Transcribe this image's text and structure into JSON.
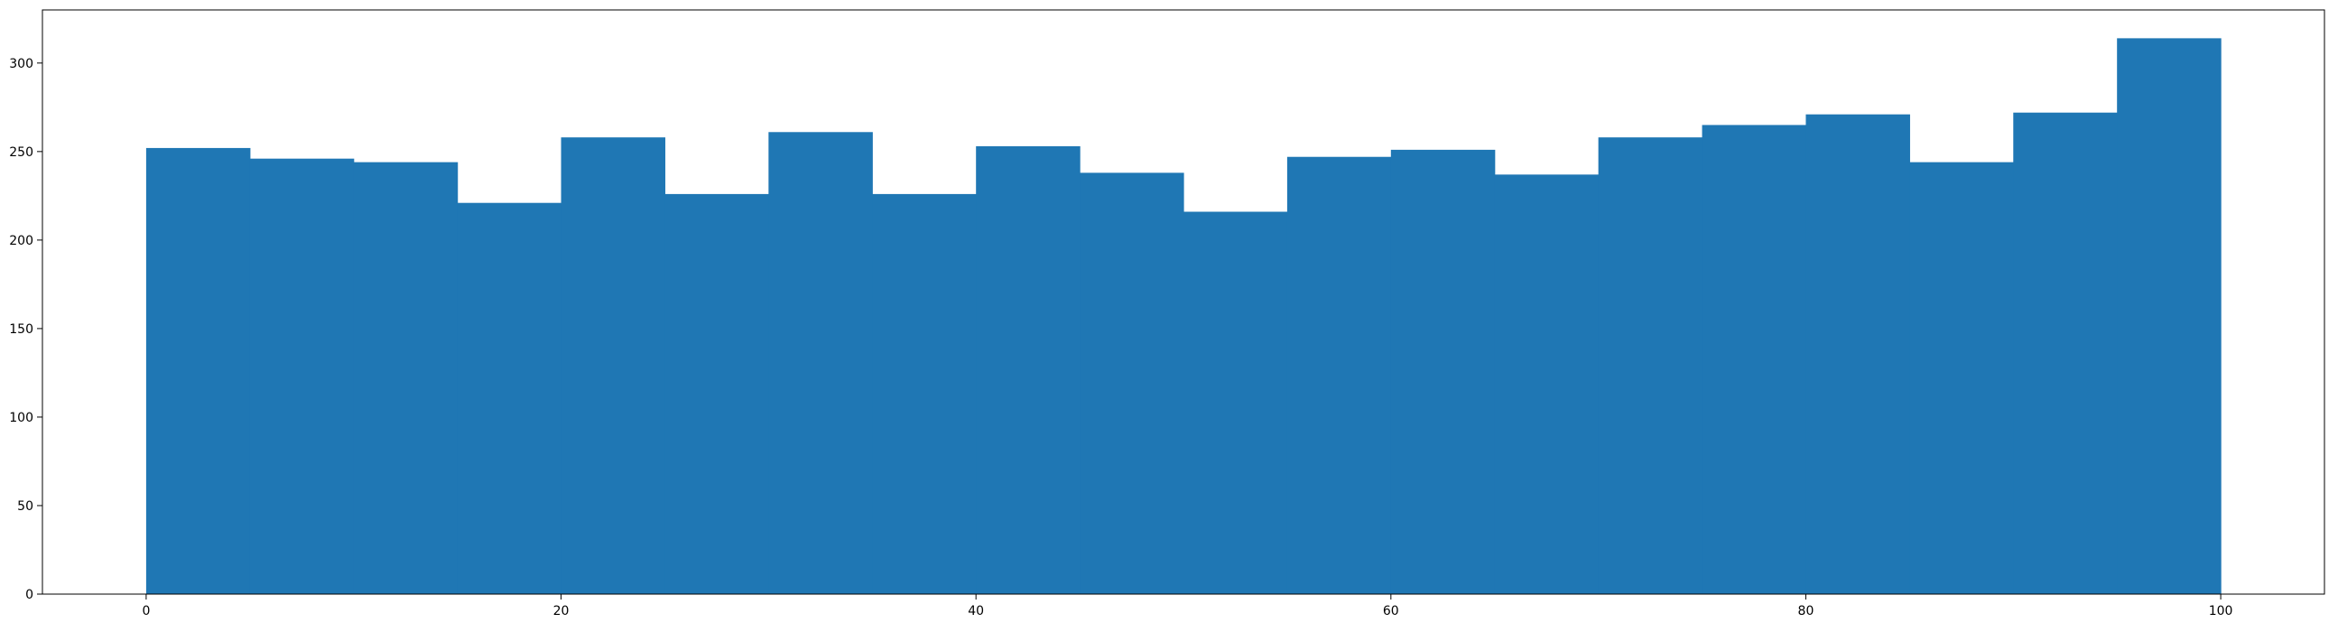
{
  "chart_data": {
    "type": "bar",
    "title": "",
    "xlabel": "",
    "ylabel": "",
    "bin_edges": [
      0,
      5,
      10,
      15,
      20,
      25,
      30,
      35,
      40,
      45,
      50,
      55,
      60,
      65,
      70,
      75,
      80,
      85,
      90,
      95,
      100
    ],
    "values": [
      252,
      246,
      244,
      221,
      258,
      226,
      261,
      226,
      253,
      238,
      216,
      247,
      251,
      237,
      258,
      265,
      271,
      244,
      272,
      314
    ],
    "xlim": [
      -5,
      105
    ],
    "ylim": [
      0,
      330
    ],
    "xticks": [
      0,
      20,
      40,
      60,
      80,
      100
    ],
    "yticks": [
      0,
      50,
      100,
      150,
      200,
      250,
      300
    ],
    "grid": false,
    "bar_color": "#1f77b4"
  }
}
